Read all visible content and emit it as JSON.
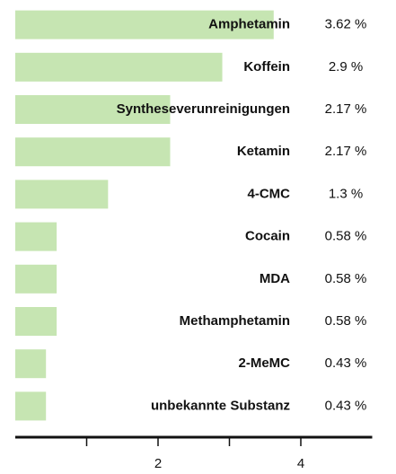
{
  "chart_data": {
    "type": "bar",
    "orientation": "horizontal",
    "categories": [
      "Amphetamin",
      "Koffein",
      "Syntheseverunreinigungen",
      "Ketamin",
      "4-CMC",
      "Cocain",
      "MDA",
      "Methamphetamin",
      "2-MeMC",
      "unbekannte Substanz"
    ],
    "values": [
      3.62,
      2.9,
      2.17,
      2.17,
      1.3,
      0.58,
      0.58,
      0.58,
      0.43,
      0.43
    ],
    "value_labels": [
      "3.62 %",
      "2.9 %",
      "2.17 %",
      "2.17 %",
      "1.3 %",
      "0.58 %",
      "0.58 %",
      "0.58 %",
      "0.43 %",
      "0.43 %"
    ],
    "color": "#c6e5b2",
    "xlim": [
      0,
      5
    ],
    "xticks": [
      2,
      4
    ],
    "minor_xticks": [
      1,
      3
    ]
  }
}
